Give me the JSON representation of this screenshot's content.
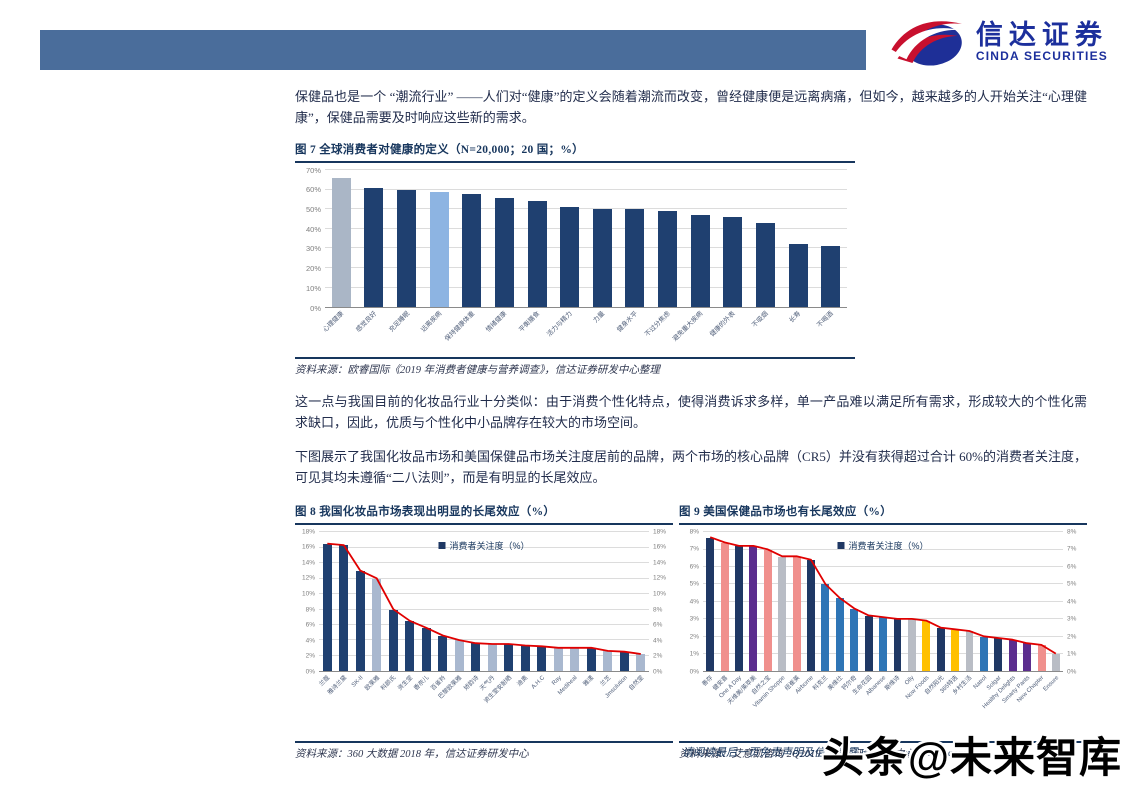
{
  "header": {
    "banner_color": "#4a6d9b",
    "brand_cn": "信达证券",
    "brand_en": "CINDA SECURITIES"
  },
  "paragraphs": {
    "p1": "保健品也是一个 “潮流行业” ——人们对“健康”的定义会随着潮流而改变，曾经健康便是远离病痛，但如今，越来越多的人开始关注“心理健康”，保健品需要及时响应这些新的需求。",
    "p2": "这一点与我国目前的化妆品行业十分类似：由于消费个性化特点，使得消费诉求多样，单一产品难以满足所有需求，形成较大的个性化需求缺口，因此，优质与个性化中小品牌存在较大的市场空间。",
    "p3": "下图展示了我国化妆品市场和美国保健品市场关注度居前的品牌，两个市场的核心品牌（CR5）并没有获得超过合计 60%的消费者关注度，可见其均未遵循“二八法则”，而是有明显的长尾效应。"
  },
  "footer": {
    "disclaimer": "请阅读最后一页免责声明及信息披露 http://www.cindasc.com",
    "watermark": "头条@未来智库"
  },
  "chart_data": [
    {
      "type": "bar",
      "title": "图 7 全球消费者对健康的定义（N=20,000；20 国；%）",
      "source": "资料来源：欧睿国际《2019 年消费者健康与营养调查》，信达证券研发中心整理",
      "categories": [
        "心理健康",
        "感觉良好",
        "充足睡眠",
        "远离疾病",
        "保持健康体重",
        "情绪健康",
        "平衡膳食",
        "活力与精力",
        "力量",
        "健身水平",
        "不过分焦虑",
        "避免重大疾病",
        "健康的外表",
        "不吸烟",
        "长寿",
        "不喝酒"
      ],
      "values": [
        66,
        61,
        60,
        59,
        58,
        56,
        54,
        51,
        50,
        50,
        49,
        47,
        46,
        43,
        32,
        31
      ],
      "bar_colors": [
        "#aab6c6",
        "#1f4070",
        "#1f4070",
        "#8db4e2",
        "#1f4070",
        "#1f4070",
        "#1f4070",
        "#1f4070",
        "#1f4070",
        "#1f4070",
        "#1f4070",
        "#1f4070",
        "#1f4070",
        "#1f4070",
        "#1f4070",
        "#1f4070"
      ],
      "ylim": [
        0,
        70
      ],
      "ytick_step": 10,
      "right_axis": false,
      "grid": true,
      "legend": null
    },
    {
      "type": "bar+line",
      "title": "图 8 我国化妆品市场表现出明显的长尾效应（%）",
      "legend": "消费者关注度（%）",
      "source": "资料来源：360 大数据 2018 年，信达证券研发中心",
      "categories": [
        "兰蔻",
        "雅诗兰黛",
        "SK-II",
        "欧莱雅",
        "科颜氏",
        "资生堂",
        "香奈儿",
        "百雀羚",
        "巴黎欧莱雅",
        "娇韵诗",
        "天气丹",
        "资生堂安耐晒",
        "迪奥",
        "A.H.C",
        "Ray",
        "Mediheal",
        "雅漾",
        "兰芝",
        "Jmsolution",
        "自然堂"
      ],
      "values": [
        16.5,
        16.3,
        13.0,
        12.0,
        8.0,
        6.5,
        5.6,
        4.6,
        4.0,
        3.6,
        3.5,
        3.5,
        3.3,
        3.2,
        3.0,
        3.0,
        3.0,
        2.6,
        2.5,
        2.2
      ],
      "bar_colors": [
        "#1f4070",
        "#1f4070",
        "#1f4070",
        "#a9b8cf",
        "#1f4070",
        "#1f4070",
        "#1f4070",
        "#1f4070",
        "#a9b8cf",
        "#1f4070",
        "#a9b8cf",
        "#1f4070",
        "#1f4070",
        "#1f4070",
        "#a9b8cf",
        "#a9b8cf",
        "#1f4070",
        "#a9b8cf",
        "#1f4070",
        "#a9b8cf"
      ],
      "line_color": "#e00000",
      "ylim": [
        0,
        18
      ],
      "ytick_step": 2,
      "right_axis": true,
      "grid": true
    },
    {
      "type": "bar+line",
      "title": "图 9 美国保健品市场也有长尾效应（%）",
      "legend": "消费者关注度（%）",
      "source": "资料来源：艾意凯咨询 2Q2019，信达证券研发中心",
      "categories": [
        "善存",
        "健安喜",
        "One A Day",
        "天维美/莱萃美",
        "自然之宝",
        "Vitamin Shoppe",
        "纽崔莱",
        "Airborne",
        "科克兰",
        "美维仕",
        "钙尔奇",
        "生命花园",
        "Albanese",
        "斯维诗",
        "Olly",
        "Now Foods",
        "自然阳光",
        "365特选",
        "乡村生活",
        "Natrol",
        "Solgar",
        "Healthy Delights",
        "Smarty Pants",
        "New Chapter",
        "Ensure"
      ],
      "values": [
        7.7,
        7.4,
        7.2,
        7.2,
        7.0,
        6.6,
        6.6,
        6.4,
        5.0,
        4.2,
        3.6,
        3.2,
        3.1,
        3.0,
        3.0,
        2.9,
        2.5,
        2.4,
        2.3,
        2.0,
        1.9,
        1.8,
        1.6,
        1.5,
        1.0
      ],
      "bar_colors": [
        "#1f3864",
        "#f0908d",
        "#1f3864",
        "#5b2d8e",
        "#f0908d",
        "#b9bdc5",
        "#f0908d",
        "#1f3864",
        "#2e75b6",
        "#2e75b6",
        "#2e75b6",
        "#1f3864",
        "#2e75b6",
        "#1f3864",
        "#b9bdc5",
        "#ffc000",
        "#1f3864",
        "#ffc000",
        "#b9bdc5",
        "#2e75b6",
        "#1f3864",
        "#5b2d8e",
        "#5b2d8e",
        "#f0908d",
        "#b9bdc5"
      ],
      "line_color": "#e00000",
      "ylim": [
        0,
        8
      ],
      "ytick_step": 1,
      "right_axis": true,
      "grid": true
    }
  ]
}
